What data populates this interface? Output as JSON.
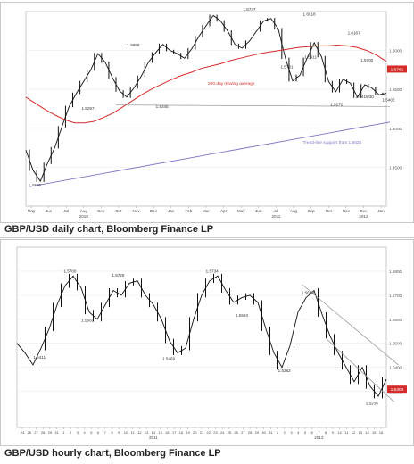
{
  "charts": [
    {
      "caption": "GBP/USD daily chart, Bloomberg Finance LP",
      "chart_data": {
        "type": "line",
        "price_min": 1.4,
        "price_max": 1.65,
        "y_ticks": [
          "1.6000",
          "1.5500",
          "1.5000",
          "1.4500"
        ],
        "last_price_label": "1.5761",
        "last_price_value": 1.5761,
        "x_labels": [
          "May",
          "Jun",
          "Jul",
          "Aug",
          "Sep",
          "Oct",
          "Nov",
          "Dec",
          "Jan",
          "Feb",
          "Mar",
          "Apr",
          "May",
          "Jun",
          "Jul",
          "Aug",
          "Sep",
          "Oct",
          "Nov",
          "Dec",
          "Jan"
        ],
        "year_labels": [
          {
            "text": "2010",
            "after_index": 3
          },
          {
            "text": "2011",
            "after_index": 14
          },
          {
            "text": "2012",
            "after_index": 19
          }
        ],
        "series": [
          {
            "name": "price",
            "values": [
              1.472,
              1.446,
              1.432,
              1.455,
              1.475,
              1.502,
              1.528,
              1.545,
              1.56,
              1.575,
              1.596,
              1.585,
              1.565,
              1.548,
              1.54,
              1.552,
              1.567,
              1.585,
              1.597,
              1.608,
              1.6,
              1.596,
              1.59,
              1.602,
              1.618,
              1.632,
              1.645,
              1.638,
              1.625,
              1.608,
              1.603,
              1.612,
              1.625,
              1.638,
              1.641,
              1.628,
              1.59,
              1.561,
              1.568,
              1.59,
              1.61,
              1.592,
              1.56,
              1.547,
              1.563,
              1.558,
              1.54,
              1.556,
              1.552,
              1.543,
              1.545
            ]
          },
          {
            "name": "200 day moving average",
            "values": [
              1.54,
              1.532,
              1.524,
              1.517,
              1.511,
              1.507,
              1.507,
              1.509,
              1.514,
              1.52,
              1.528,
              1.536,
              1.544,
              1.551,
              1.557,
              1.563,
              1.568,
              1.572,
              1.577,
              1.58,
              1.583,
              1.587,
              1.59,
              1.593,
              1.596,
              1.598,
              1.6,
              1.602,
              1.604,
              1.605,
              1.606,
              1.606,
              1.607,
              1.606,
              1.604,
              1.6,
              1.594,
              1.586
            ]
          }
        ],
        "annotations": [
          {
            "text": "1.4229",
            "x": 1.2,
            "y": 1.425
          },
          {
            "text": "1.5297",
            "x": 8.6,
            "y": 1.524
          },
          {
            "text": "1.5998",
            "x": 14.9,
            "y": 1.605
          },
          {
            "text": "1.5345",
            "x": 18.9,
            "y": 1.526
          },
          {
            "text": "1.6747",
            "x": 31.0,
            "y": 1.651
          },
          {
            "text": "1.6618",
            "x": 39.3,
            "y": 1.645
          },
          {
            "text": "1.5781",
            "x": 36.2,
            "y": 1.577
          },
          {
            "text": "1.5911",
            "x": 39.5,
            "y": 1.59
          },
          {
            "text": "1.6167",
            "x": 45.5,
            "y": 1.621
          },
          {
            "text": "1.5700",
            "x": 47.3,
            "y": 1.586
          },
          {
            "text": "1.5272",
            "x": 43.1,
            "y": 1.529
          },
          {
            "text": "1.5418/30",
            "x": 47.0,
            "y": 1.539
          },
          {
            "text": "1.5402",
            "x": 50.3,
            "y": 1.535
          }
        ],
        "notes": [
          {
            "text": "200 day moving average",
            "x": 28.5,
            "y": 1.556
          },
          {
            "text": "Trend-line support from 1.5635",
            "x": 42.5,
            "y": 1.48
          }
        ],
        "trendline": {
          "from": {
            "x": 0.5,
            "y": 1.425
          },
          "to": {
            "x": 50.5,
            "y": 1.508
          }
        },
        "support_line": {
          "from": {
            "x": 12.5,
            "y": 1.53
          },
          "to": {
            "x": 50.5,
            "y": 1.528
          }
        },
        "colors": {
          "ma": "#d62b2b",
          "trend": "#7b74c7",
          "price": "#111111",
          "last_tag": "#d62b2b"
        }
      }
    },
    {
      "caption": "GBP/USD hourly chart, Bloomberg Finance LP",
      "chart_data": {
        "type": "line",
        "price_min": 1.515,
        "price_max": 1.59,
        "y_ticks": [
          "1.5800",
          "1.5700",
          "1.5600",
          "1.5500",
          "1.5400",
          "1.5300"
        ],
        "last_price_label": "1.5309",
        "last_price_value": 1.5309,
        "x_labels": [
          "24",
          "26",
          "27",
          "28",
          "29",
          "31",
          "1",
          "2",
          "3",
          "4",
          "5",
          "6",
          "7",
          "8",
          "9",
          "10",
          "11",
          "12",
          "13",
          "14",
          "15",
          "16",
          "17",
          "18",
          "19",
          "20",
          "21",
          "22",
          "23",
          "24",
          "25",
          "26",
          "27",
          "28",
          "29",
          "30",
          "31",
          "1",
          "2",
          "3",
          "4",
          "5",
          "6",
          "7",
          "8",
          "9",
          "10",
          "11",
          "12",
          "13",
          "14",
          "15",
          "16"
        ],
        "year_labels": [
          {
            "text": "2011",
            "after_index": 19
          },
          {
            "text": "2012",
            "after_index": 43
          }
        ],
        "series": [
          {
            "name": "price",
            "values": [
              1.55,
              1.546,
              1.541,
              1.548,
              1.556,
              1.566,
              1.574,
              1.578,
              1.573,
              1.563,
              1.56,
              1.566,
              1.572,
              1.57,
              1.575,
              1.576,
              1.57,
              1.566,
              1.56,
              1.551,
              1.546,
              1.548,
              1.56,
              1.57,
              1.576,
              1.578,
              1.572,
              1.567,
              1.569,
              1.57,
              1.567,
              1.556,
              1.546,
              1.54,
              1.549,
              1.563,
              1.569,
              1.572,
              1.562,
              1.553,
              1.546,
              1.54,
              1.534,
              1.54,
              1.532,
              1.528,
              1.535
            ]
          }
        ],
        "annotations": [
          {
            "text": "1.5700",
            "x": 6.6,
            "y": 1.5795
          },
          {
            "text": "1.5411",
            "x": 2.8,
            "y": 1.5435
          },
          {
            "text": "1.5681",
            "x": 8.8,
            "y": 1.559
          },
          {
            "text": "1.5726",
            "x": 12.6,
            "y": 1.5778
          },
          {
            "text": "1.5469",
            "x": 18.9,
            "y": 1.543
          },
          {
            "text": "1.5734",
            "x": 24.3,
            "y": 1.5795
          },
          {
            "text": "1.5592",
            "x": 28.0,
            "y": 1.561
          },
          {
            "text": "1.5362",
            "x": 33.3,
            "y": 1.538
          },
          {
            "text": "1.5639",
            "x": 36.2,
            "y": 1.5705
          },
          {
            "text": "1.5235",
            "x": 44.2,
            "y": 1.5245
          }
        ],
        "channel": [
          {
            "from": {
              "x": 35.5,
              "y": 1.5745
            },
            "to": {
              "x": 47.5,
              "y": 1.541
            }
          },
          {
            "from": {
              "x": 38.5,
              "y": 1.552
            },
            "to": {
              "x": 47.0,
              "y": 1.5255
            }
          }
        ],
        "colors": {
          "price": "#111111",
          "channel": "#9a9a9a",
          "last_tag": "#d62b2b"
        }
      }
    }
  ]
}
